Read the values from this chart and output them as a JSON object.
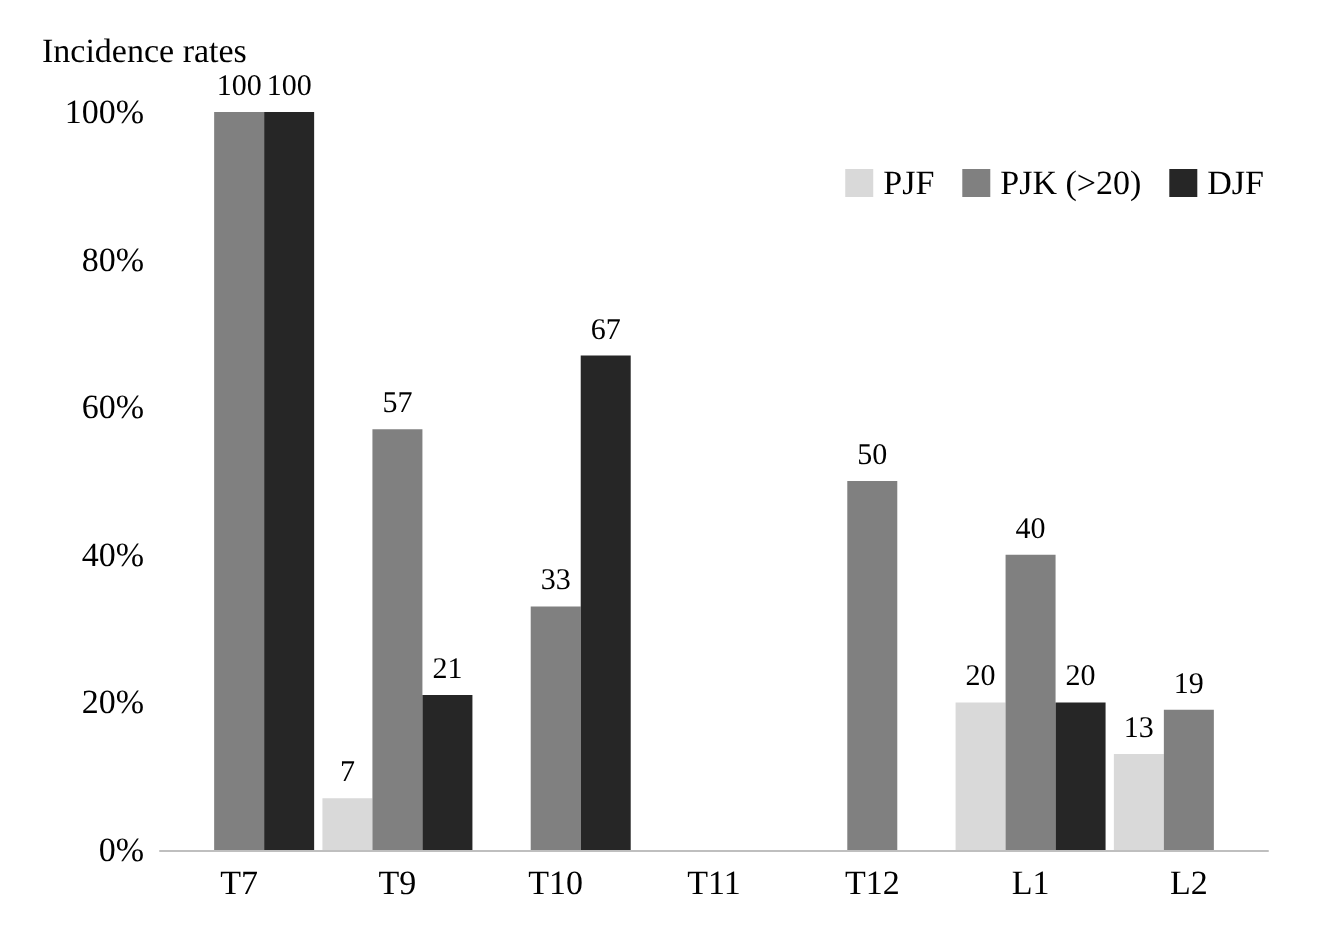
{
  "chart_data": {
    "type": "bar",
    "ylabel": "Incidence rates",
    "categories": [
      "T7",
      "T9",
      "T10",
      "T11",
      "T12",
      "L1",
      "L2"
    ],
    "series": [
      {
        "name": "PJF",
        "color": "#d9d9d9",
        "values": [
          null,
          7,
          null,
          null,
          null,
          20,
          13
        ]
      },
      {
        "name": "PJK (>20)",
        "color": "#808080",
        "values": [
          100,
          57,
          33,
          null,
          50,
          40,
          19
        ]
      },
      {
        "name": "DJF",
        "color": "#262626",
        "values": [
          100,
          21,
          67,
          null,
          null,
          20,
          null
        ]
      }
    ],
    "ylim": [
      0,
      100
    ],
    "yticks": [
      {
        "value": 0,
        "label": "0%"
      },
      {
        "value": 20,
        "label": "20%"
      },
      {
        "value": 40,
        "label": "40%"
      },
      {
        "value": 60,
        "label": "60%"
      },
      {
        "value": 80,
        "label": "80%"
      },
      {
        "value": 100,
        "label": "100%"
      }
    ],
    "data_labels": true,
    "legend": "top right",
    "grid": false
  }
}
